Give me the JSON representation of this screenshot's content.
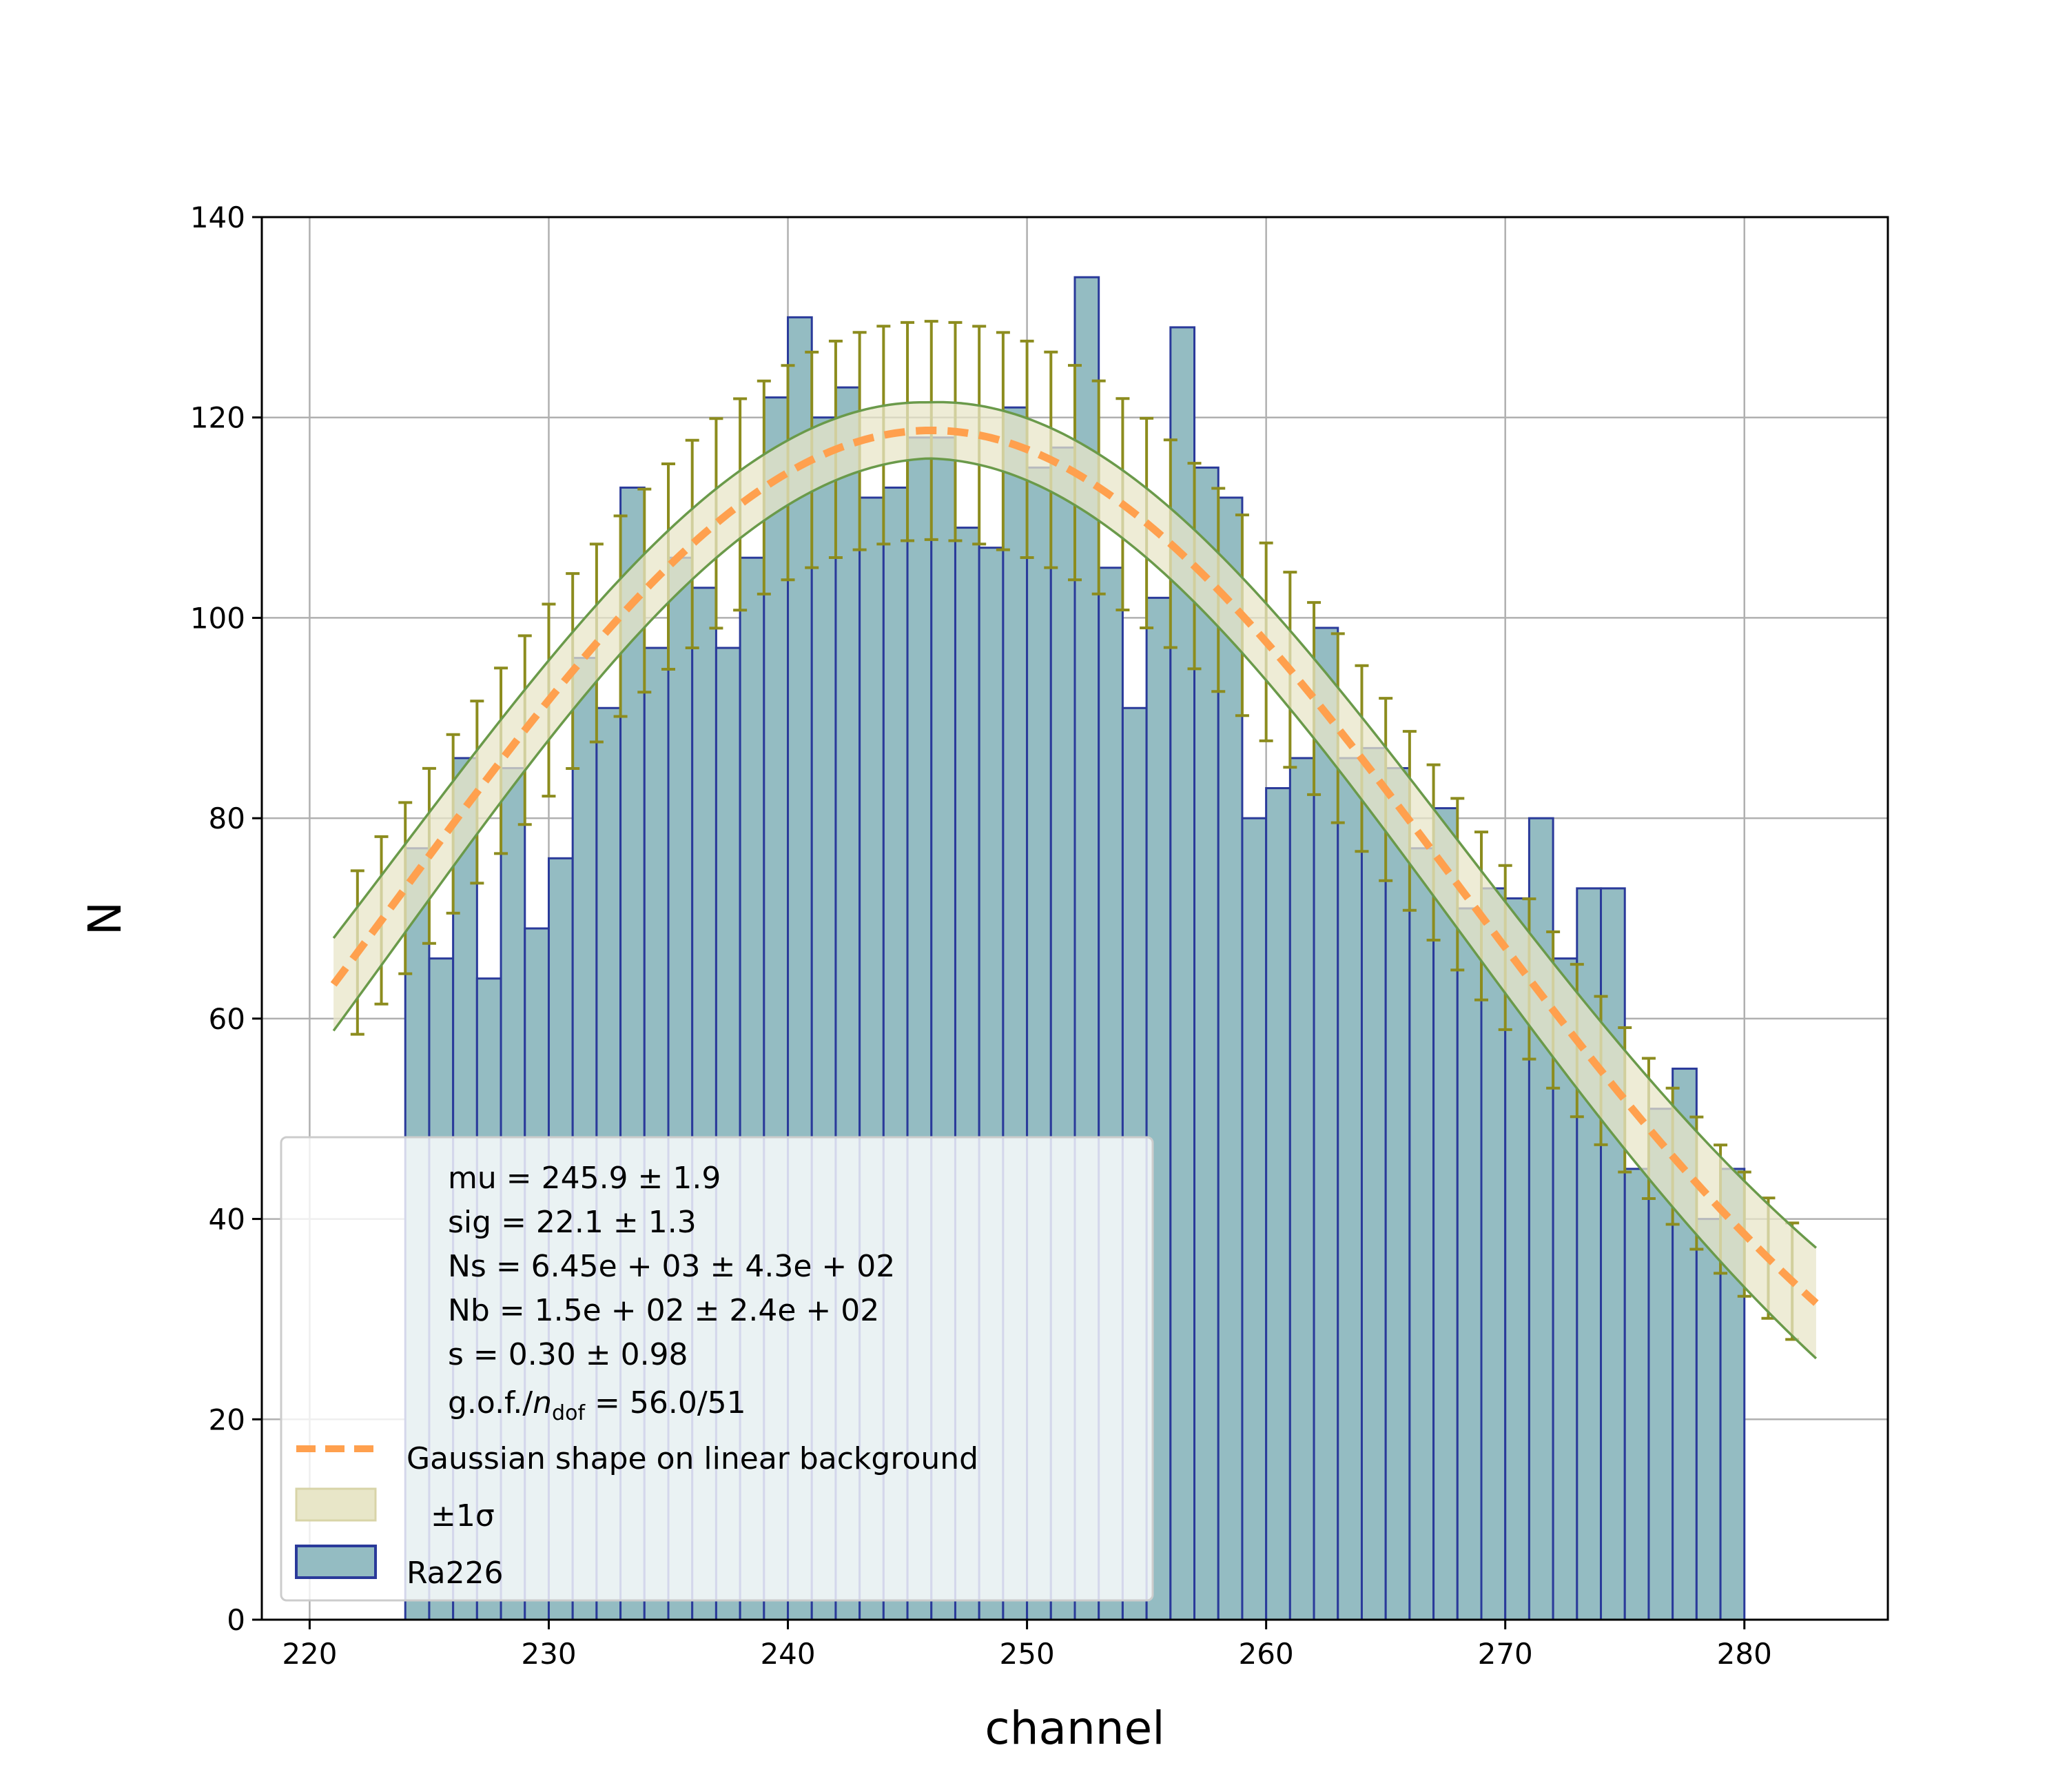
{
  "chart_data": {
    "type": "bar",
    "xlabel": "channel",
    "ylabel": "N",
    "xlim": [
      218,
      286
    ],
    "ylim": [
      0,
      140
    ],
    "xticks": [
      220,
      230,
      240,
      250,
      260,
      270,
      280
    ],
    "yticks": [
      0,
      20,
      40,
      60,
      80,
      100,
      120,
      140
    ],
    "grid": true,
    "legend_placement": "lower-left",
    "colors": {
      "bar_fill": "#94bcc2",
      "bar_edge": "#2a3a9a",
      "fit_line": "#ffa04e",
      "band_fill": "#e8e6c8",
      "band_edge": "#6a9a4a",
      "errorbar": "#8c8c1e",
      "grid": "#b0b0b0"
    },
    "histogram": {
      "name": "Ra226",
      "bin_start": 224,
      "bin_width": 1,
      "counts": [
        77,
        66,
        86,
        64,
        85,
        69,
        76,
        96,
        91,
        113,
        97,
        106,
        103,
        97,
        106,
        122,
        130,
        120,
        123,
        112,
        113,
        118,
        118,
        109,
        107,
        121,
        115,
        117,
        134,
        105,
        91,
        102,
        129,
        115,
        112,
        80,
        83,
        86,
        99,
        86,
        87,
        85,
        77,
        81,
        71,
        73,
        72,
        80,
        66,
        73,
        73,
        45,
        51,
        55,
        40,
        45
      ]
    },
    "fit": {
      "name": "Gaussian shape on linear background",
      "x_range": [
        221,
        283
      ],
      "band_label": "±1σ",
      "errorbar_step": 1
    },
    "legend": {
      "params": [
        "mu = 245.9 ± 1.9",
        "sig = 22.1 ± 1.3",
        "Ns = 6.45e + 03 ± 4.3e + 02",
        "Nb = 1.5e + 02 ± 2.4e + 02",
        "s = 0.30 ± 0.98"
      ],
      "gof_prefix": "g.o.f./",
      "gof_n": "n",
      "gof_sub": "dof",
      "gof_value": " = 56.0/51",
      "fit_label": "Gaussian shape on linear background",
      "band_label": "±1σ",
      "hist_label": "Ra226"
    }
  }
}
